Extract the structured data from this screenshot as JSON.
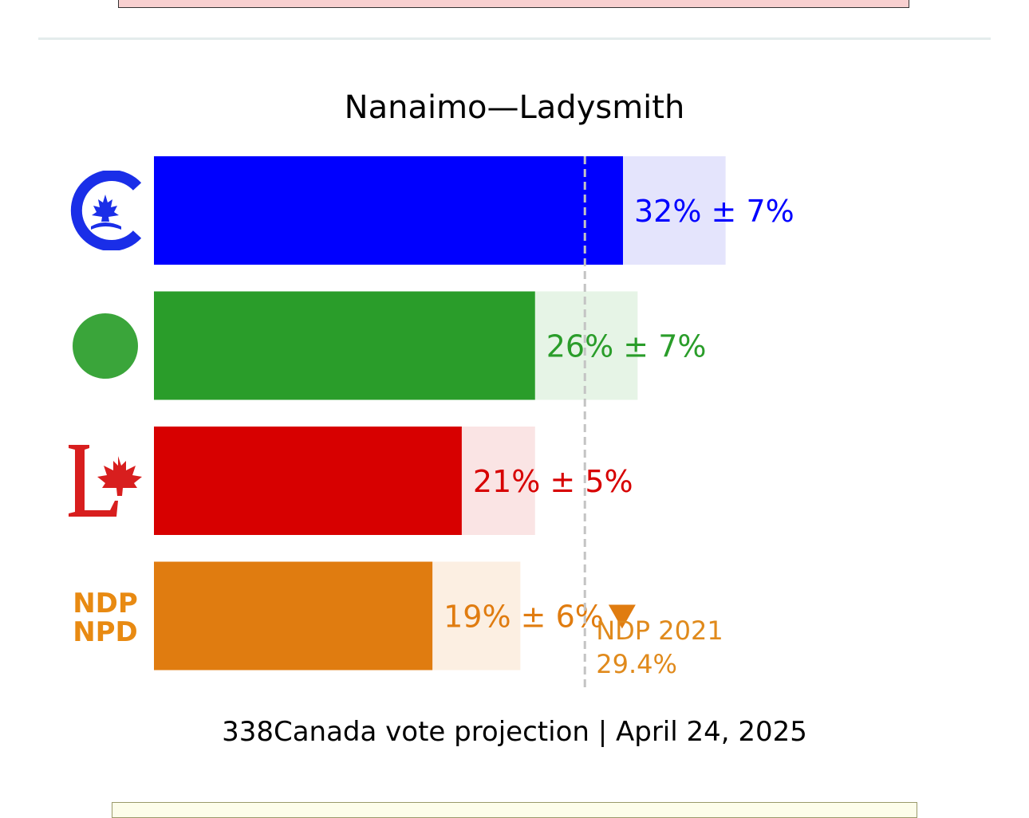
{
  "chart_data": {
    "type": "bar",
    "orientation": "horizontal",
    "title": "Nanaimo—Ladysmith",
    "footer": "338Canada vote projection | April 24, 2025",
    "xlim": [
      0,
      50
    ],
    "series": [
      {
        "name": "Conservative",
        "logo": "conservative-logo-icon",
        "value": 32,
        "margin": 7,
        "label": "32% ± 7%",
        "color": "#0000ff",
        "band_color": "#e4e4fc"
      },
      {
        "name": "Green",
        "logo": "green-logo-icon",
        "value": 26,
        "margin": 7,
        "label": "26% ± 7%",
        "color": "#2a9d2a",
        "band_color": "#e6f4e6"
      },
      {
        "name": "Liberal",
        "logo": "liberal-logo-icon",
        "value": 21,
        "margin": 5,
        "label": "21% ± 5%",
        "color": "#d70000",
        "band_color": "#fae4e4"
      },
      {
        "name": "NDP",
        "logo": "ndp-logo-icon",
        "value": 19,
        "margin": 6,
        "label": "19% ± 6%",
        "trend": "down",
        "color": "#e07c10",
        "band_color": "#fcefe2"
      }
    ],
    "reference_line": {
      "value": 29.4,
      "label_line1": "NDP 2021",
      "label_line2": "29.4%",
      "color": "#e08a1c"
    }
  },
  "logos": {
    "ndp_line1": "NDP",
    "ndp_line2": "NPD"
  }
}
